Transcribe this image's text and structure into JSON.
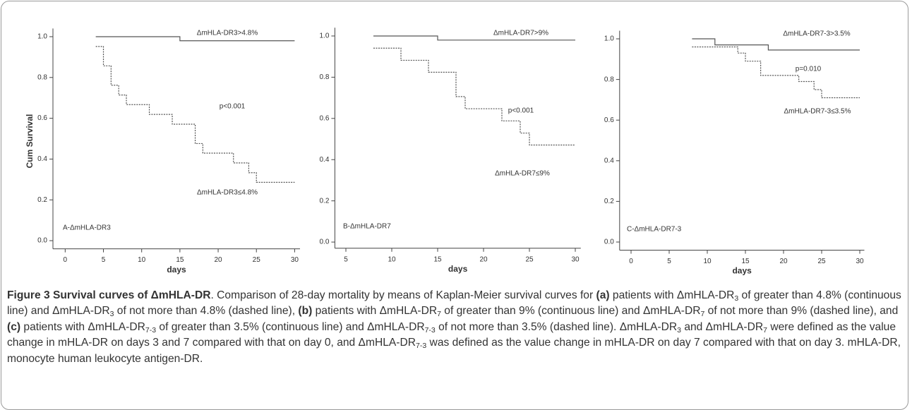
{
  "chart_data": [
    {
      "type": "step",
      "ylabel": "Cum Survival",
      "xlabel": "days",
      "xlim": [
        -1.6,
        30.7
      ],
      "xticks": [
        0,
        5,
        10,
        15,
        20,
        25,
        30
      ],
      "ylim": [
        -0.04,
        1.04
      ],
      "yticks": [
        {
          "value": 0,
          "label": "0.0"
        },
        0.2,
        0.4,
        0.6,
        0.8,
        {
          "value": 1,
          "label": "1.0"
        }
      ],
      "series": [
        {
          "name": "ΔmHLA-DR3>4.8%",
          "color": "#555555",
          "line_style": "solid",
          "x": [
            4,
            15,
            30
          ],
          "values": [
            1.0,
            0.98,
            0.98
          ]
        },
        {
          "name": "ΔmHLA-DR3≤4.8%",
          "color": "#555555",
          "line_style": "dashed",
          "x": [
            4,
            5,
            6,
            7,
            8,
            11,
            14,
            17,
            18,
            22,
            24,
            25,
            30
          ],
          "values": [
            0.952,
            0.857,
            0.762,
            0.714,
            0.667,
            0.619,
            0.571,
            0.476,
            0.429,
            0.381,
            0.333,
            0.286,
            0.286
          ]
        }
      ],
      "annotations": [
        "p<0.001",
        "A-ΔmHLA-DR3"
      ]
    },
    {
      "type": "step",
      "xlabel": "days",
      "xlim": [
        3.8,
        30.6
      ],
      "xticks": [
        5,
        10,
        15,
        20,
        25,
        30
      ],
      "ylim": [
        -0.03,
        1.04
      ],
      "yticks": [
        {
          "value": 0,
          "label": "0.0"
        },
        0.2,
        0.4,
        0.6,
        0.8,
        {
          "value": 1,
          "label": "1.0"
        }
      ],
      "series": [
        {
          "name": "ΔmHLA-DR7>9%",
          "color": "#555555",
          "line_style": "solid",
          "x": [
            8,
            15,
            30
          ],
          "values": [
            1.0,
            0.98,
            0.98
          ]
        },
        {
          "name": "ΔmHLA-DR7≤9%",
          "color": "#555555",
          "line_style": "dashed",
          "x": [
            8,
            11,
            14,
            17,
            18,
            22,
            24,
            25,
            30
          ],
          "values": [
            0.941,
            0.882,
            0.824,
            0.706,
            0.647,
            0.588,
            0.529,
            0.471,
            0.471
          ]
        }
      ],
      "annotations": [
        "p<0.001",
        "B-ΔmHLA-DR7"
      ]
    },
    {
      "type": "step",
      "xlabel": "days",
      "xlim": [
        -1.5,
        30.6
      ],
      "xticks": [
        0,
        5,
        10,
        15,
        20,
        25,
        30
      ],
      "ylim": [
        -0.04,
        1.04
      ],
      "yticks": [
        {
          "value": 0,
          "label": "0.0"
        },
        0.2,
        0.4,
        0.6,
        0.8,
        {
          "value": 1,
          "label": "1.0"
        }
      ],
      "series": [
        {
          "name": "ΔmHLA-DR7-3>3.5%",
          "color": "#555555",
          "line_style": "solid",
          "x": [
            8,
            11,
            18,
            30
          ],
          "values": [
            1.0,
            0.97,
            0.945,
            0.945
          ]
        },
        {
          "name": "ΔmHLA-DR7-3≤3.5%",
          "color": "#555555",
          "line_style": "dashed",
          "x": [
            8,
            14,
            15,
            17,
            22,
            24,
            25,
            30
          ],
          "values": [
            0.96,
            0.93,
            0.89,
            0.82,
            0.79,
            0.75,
            0.71,
            0.71
          ]
        }
      ],
      "annotations": [
        "p=0.010",
        "C-ΔmHLA-DR7-3"
      ]
    }
  ],
  "caption": [
    {
      "text": "Figure 3 Survival curves of ΔmHLA-DR",
      "bold": true
    },
    {
      "text": ". Comparison of 28-day mortality by means of Kaplan-Meier survival curves for "
    },
    {
      "text": "(a)",
      "bold": true
    },
    {
      "text": " patients with ΔmHLA-DR"
    },
    {
      "text": "3",
      "sub": true
    },
    {
      "text": " of greater than 4.8% (continuous line) and ΔmHLA-DR"
    },
    {
      "text": "3",
      "sub": true
    },
    {
      "text": " of not more than 4.8% (dashed line), "
    },
    {
      "text": "(b)",
      "bold": true
    },
    {
      "text": " patients with ΔmHLA-DR"
    },
    {
      "text": "7",
      "sub": true
    },
    {
      "text": " of greater than 9% (continuous line) and ΔmHLA-DR"
    },
    {
      "text": "7",
      "sub": true
    },
    {
      "text": " of not more than 9% (dashed line), and "
    },
    {
      "text": "(c)",
      "bold": true
    },
    {
      "text": " patients with ΔmHLA-DR"
    },
    {
      "text": "7-3",
      "sub": true
    },
    {
      "text": " of greater than 3.5% (continuous line) and ΔmHLA-DR"
    },
    {
      "text": "7-3",
      "sub": true
    },
    {
      "text": " of not more than 3.5% (dashed line). ΔmHLA-DR"
    },
    {
      "text": "3",
      "sub": true
    },
    {
      "text": " and ΔmHLA-DR"
    },
    {
      "text": "7",
      "sub": true
    },
    {
      "text": " were defined as the value change in mHLA-DR on days 3 and 7 compared with that on day 0, and ΔmHLA-DR"
    },
    {
      "text": "7-3",
      "sub": true
    },
    {
      "text": " was defined as the value change in mHLA-DR on day 7 compared with that on day 3. mHLA-DR, monocyte human leukocyte antigen-DR."
    }
  ]
}
